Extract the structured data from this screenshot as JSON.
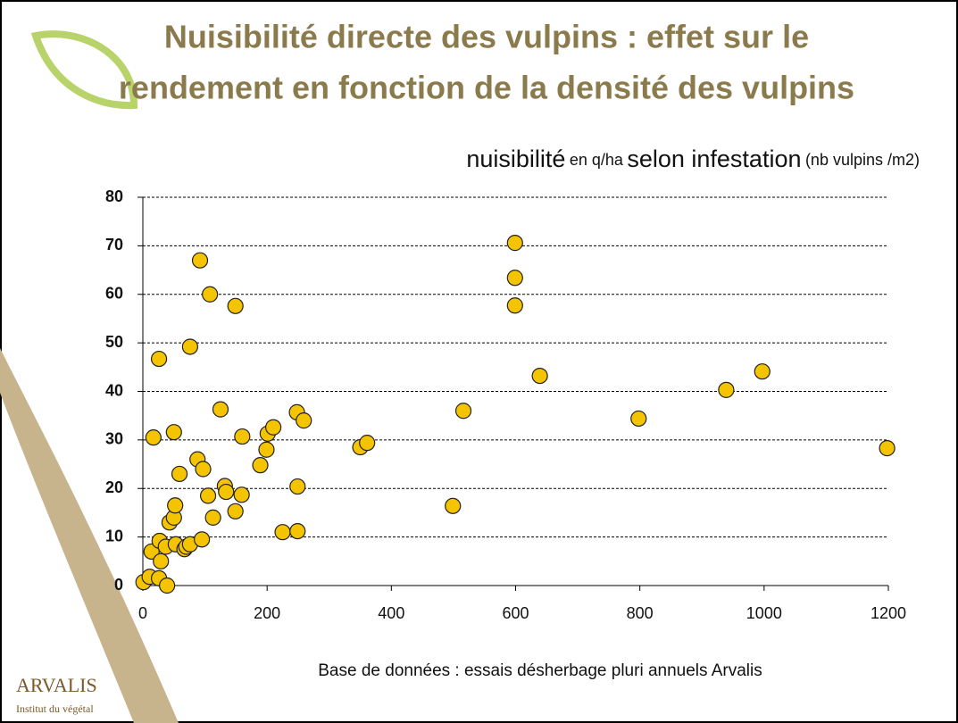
{
  "header": {
    "title_lines": [
      "Nuisibilité directe des vulpins : effet sur le",
      "rendement en fonction de la densité des vulpins"
    ]
  },
  "chart_data": {
    "type": "scatter",
    "title_parts": [
      "nuisibilité",
      "en q/ha",
      "selon infestation",
      "(nb vulpins /m2)"
    ],
    "x": [
      1,
      11,
      26,
      39,
      14,
      29,
      27,
      37,
      43,
      50,
      52,
      53,
      67,
      70,
      76,
      95,
      113,
      149,
      17,
      50,
      59,
      88,
      97,
      105,
      125,
      132,
      134,
      159,
      160,
      26,
      76,
      92,
      108,
      149,
      189,
      199,
      201,
      210,
      248,
      259,
      249,
      225,
      249,
      350,
      361,
      499,
      516,
      599,
      599,
      599,
      639,
      798,
      939,
      997,
      1198
    ],
    "values": [
      0.7,
      1.8,
      1.5,
      0,
      7,
      5,
      9.2,
      8,
      13,
      14,
      16.5,
      8.5,
      7.5,
      8,
      8.5,
      9.5,
      14,
      15.3,
      30.5,
      31.6,
      23,
      26,
      24,
      18.5,
      36.3,
      20.5,
      19.3,
      18.7,
      30.7,
      46.7,
      49.2,
      67,
      60,
      57.6,
      24.8,
      28,
      31.3,
      32.6,
      35.7,
      34,
      20.4,
      11,
      11.2,
      28.5,
      29.4,
      16.4,
      36,
      70.6,
      63.4,
      57.7,
      43.2,
      34.4,
      40.3,
      44.1,
      28.3
    ],
    "color": "#f5c400",
    "xlim": [
      0,
      1200
    ],
    "xticks": [
      0,
      200,
      400,
      600,
      800,
      1000,
      1200
    ],
    "ylim": [
      0,
      80
    ],
    "yticks": [
      0,
      10,
      20,
      30,
      40,
      50,
      60,
      70,
      80
    ],
    "grid": true,
    "annotation": "Base de données : essais désherbage pluri annuels Arvalis"
  },
  "logo": {
    "name": "ARVALIS",
    "tagline": "Institut du végétal"
  }
}
